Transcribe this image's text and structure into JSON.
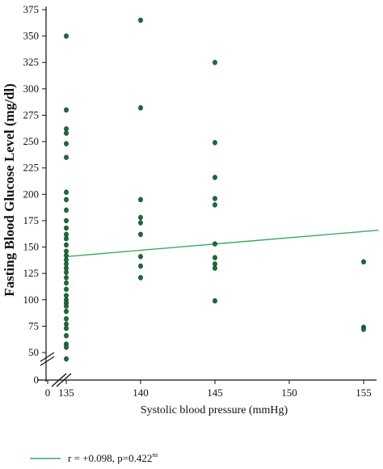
{
  "chart_data": {
    "type": "scatter",
    "title": "",
    "xlabel": "Systolic blood pressure (mmHg)",
    "ylabel": "Fasting Blood Glucose Level (mg/dl)",
    "x_ticks": [
      "0",
      "135",
      "140",
      "145",
      "150",
      "155"
    ],
    "y_ticks": [
      "0",
      "50",
      "75",
      "100",
      "125",
      "150",
      "175",
      "200",
      "225",
      "250",
      "275",
      "300",
      "325",
      "350",
      "375"
    ],
    "axis_breaks": [
      "x",
      "y"
    ],
    "xlim": [
      135,
      155
    ],
    "ylim": [
      50,
      375
    ],
    "grid": false,
    "legend_position": "bottom-left",
    "points": [
      [
        135,
        350
      ],
      [
        135,
        280
      ],
      [
        135,
        262
      ],
      [
        135,
        258
      ],
      [
        135,
        248
      ],
      [
        135,
        235
      ],
      [
        135,
        202
      ],
      [
        135,
        195
      ],
      [
        135,
        185
      ],
      [
        135,
        175
      ],
      [
        135,
        168
      ],
      [
        135,
        162
      ],
      [
        135,
        158
      ],
      [
        135,
        152
      ],
      [
        135,
        146
      ],
      [
        135,
        142
      ],
      [
        135,
        138
      ],
      [
        135,
        134
      ],
      [
        135,
        130
      ],
      [
        135,
        126
      ],
      [
        135,
        121
      ],
      [
        135,
        116
      ],
      [
        135,
        110
      ],
      [
        135,
        104
      ],
      [
        135,
        100
      ],
      [
        135,
        97
      ],
      [
        135,
        94
      ],
      [
        135,
        89
      ],
      [
        135,
        82
      ],
      [
        135,
        77
      ],
      [
        135,
        73
      ],
      [
        135,
        66
      ],
      [
        135,
        58
      ],
      [
        135,
        55
      ],
      [
        135,
        44
      ],
      [
        140,
        365
      ],
      [
        140,
        282
      ],
      [
        140,
        195
      ],
      [
        140,
        178
      ],
      [
        140,
        173
      ],
      [
        140,
        162
      ],
      [
        140,
        141
      ],
      [
        140,
        132
      ],
      [
        140,
        121
      ],
      [
        145,
        325
      ],
      [
        145,
        249
      ],
      [
        145,
        216
      ],
      [
        145,
        196
      ],
      [
        145,
        190
      ],
      [
        145,
        153
      ],
      [
        145,
        140
      ],
      [
        145,
        134
      ],
      [
        145,
        130
      ],
      [
        145,
        99
      ],
      [
        155,
        136
      ],
      [
        155,
        74
      ],
      [
        155,
        72
      ]
    ],
    "regression_line": {
      "x": [
        135,
        156
      ],
      "y": [
        141,
        166
      ]
    },
    "legend": [
      {
        "label": "r = +0.098, p=0.422",
        "superscript": "ns"
      }
    ],
    "colors": {
      "points": "#1e6b3c",
      "point_edge": "#0b3a1c",
      "line": "#3aa95c",
      "axis": "#111111"
    }
  }
}
